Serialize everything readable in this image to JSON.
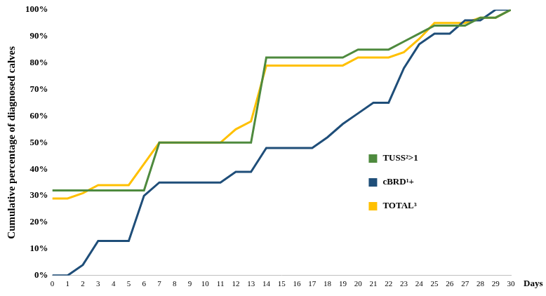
{
  "chart_data": {
    "type": "line",
    "x": [
      0,
      1,
      2,
      3,
      4,
      5,
      6,
      7,
      8,
      9,
      10,
      11,
      12,
      13,
      14,
      15,
      16,
      17,
      18,
      19,
      20,
      21,
      22,
      23,
      24,
      25,
      26,
      27,
      28,
      29,
      30
    ],
    "series": [
      {
        "name": "TUSS²>1",
        "color": "#4e8a3e",
        "values": [
          32,
          32,
          32,
          32,
          32,
          32,
          32,
          50,
          50,
          50,
          50,
          50,
          50,
          50,
          82,
          82,
          82,
          82,
          82,
          82,
          85,
          85,
          85,
          88,
          91,
          94,
          94,
          94,
          97,
          97,
          100
        ]
      },
      {
        "name": "cBRD¹+",
        "color": "#1f4e79",
        "values": [
          0,
          0,
          4,
          13,
          13,
          13,
          30,
          35,
          35,
          35,
          35,
          35,
          39,
          39,
          48,
          48,
          48,
          48,
          52,
          57,
          61,
          65,
          65,
          78,
          87,
          91,
          91,
          96,
          96,
          100,
          100
        ]
      },
      {
        "name": "TOTAL³",
        "color": "#ffc000",
        "values": [
          29,
          29,
          31,
          34,
          34,
          34,
          42,
          50,
          50,
          50,
          50,
          50,
          55,
          58,
          79,
          79,
          79,
          79,
          79,
          79,
          82,
          82,
          82,
          84,
          89,
          95,
          95,
          95,
          97,
          97,
          100
        ]
      }
    ],
    "xlim": [
      0,
      30
    ],
    "xticks": [
      0,
      1,
      2,
      3,
      4,
      5,
      6,
      7,
      8,
      9,
      10,
      11,
      12,
      13,
      14,
      15,
      16,
      17,
      18,
      19,
      20,
      21,
      22,
      23,
      24,
      25,
      26,
      27,
      28,
      29,
      30
    ],
    "ylim": [
      0,
      100
    ],
    "yticks": [
      {
        "value": 0,
        "label": "0%"
      },
      {
        "value": 10,
        "label": "10%"
      },
      {
        "value": 20,
        "label": "20%"
      },
      {
        "value": 30,
        "label": "30%"
      },
      {
        "value": 40,
        "label": "40%"
      },
      {
        "value": 50,
        "label": "50%"
      },
      {
        "value": 60,
        "label": "60%"
      },
      {
        "value": 70,
        "label": "70%"
      },
      {
        "value": 80,
        "label": "80%"
      },
      {
        "value": 90,
        "label": "90%"
      },
      {
        "value": 100,
        "label": "100%"
      }
    ],
    "y_label": "Cumulative percentage of diagnosed calves",
    "x_label": "Days",
    "grid": false,
    "legend": "right",
    "marker": "none"
  }
}
